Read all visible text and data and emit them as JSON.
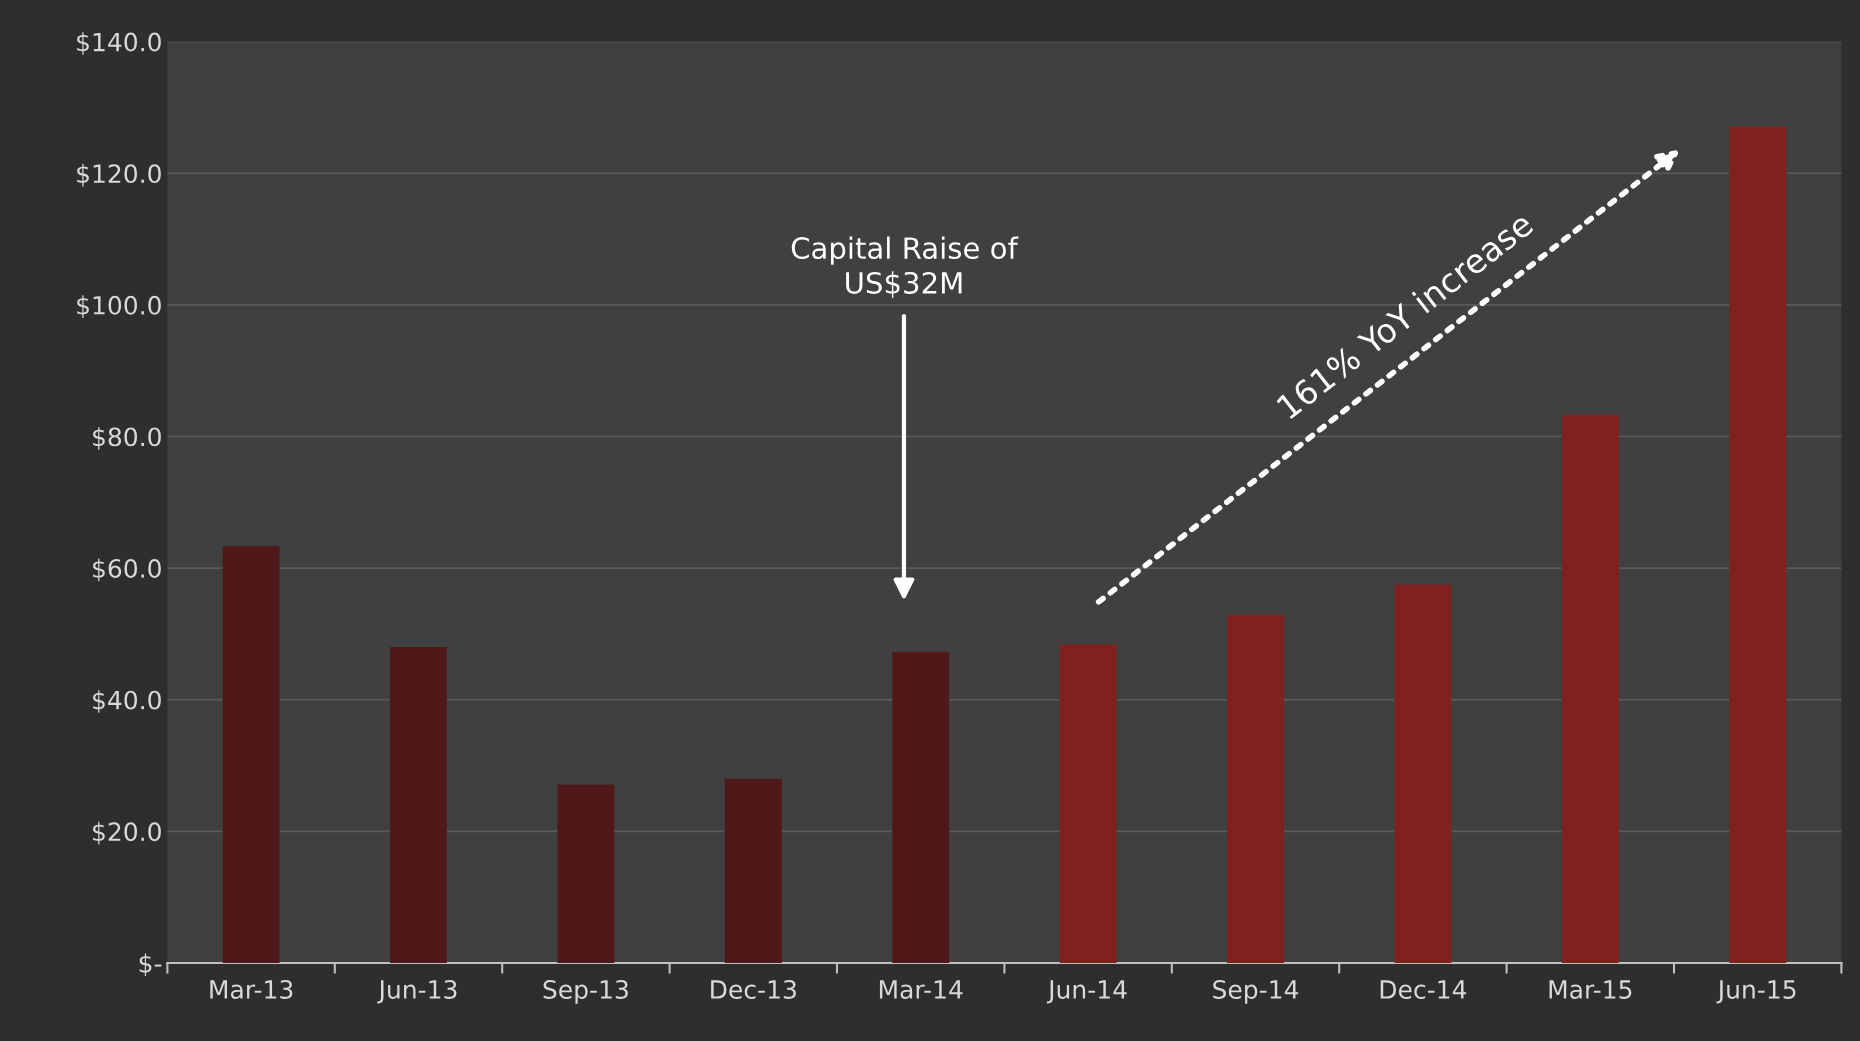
{
  "chart_data": {
    "type": "bar",
    "categories": [
      "Mar-13",
      "Jun-13",
      "Sep-13",
      "Dec-13",
      "Mar-14",
      "Jun-14",
      "Sep-14",
      "Dec-14",
      "Mar-15",
      "Jun-15"
    ],
    "values": [
      63.3,
      48.0,
      27.1,
      28.0,
      47.3,
      48.4,
      52.9,
      57.5,
      83.3,
      127.1
    ],
    "colors": [
      "#4f1919",
      "#4f1919",
      "#4f1919",
      "#4f1919",
      "#4f1919",
      "#7f211f",
      "#7f211f",
      "#7f211f",
      "#7f211f",
      "#7f211f"
    ],
    "ylim": [
      0,
      140
    ],
    "yticks": [
      {
        "value": 0,
        "label": "$-"
      },
      {
        "value": 20,
        "label": "$20.0"
      },
      {
        "value": 40,
        "label": "$40.0"
      },
      {
        "value": 60,
        "label": "$60.0"
      },
      {
        "value": 80,
        "label": "$80.0"
      },
      {
        "value": 100,
        "label": "$100.0"
      },
      {
        "value": 120,
        "label": "$120.0"
      },
      {
        "value": 140,
        "label": "$140.0"
      }
    ],
    "grid": "y",
    "annotations": [
      "Capital Raise of\nUS$32M",
      "161% YoY increase"
    ]
  }
}
